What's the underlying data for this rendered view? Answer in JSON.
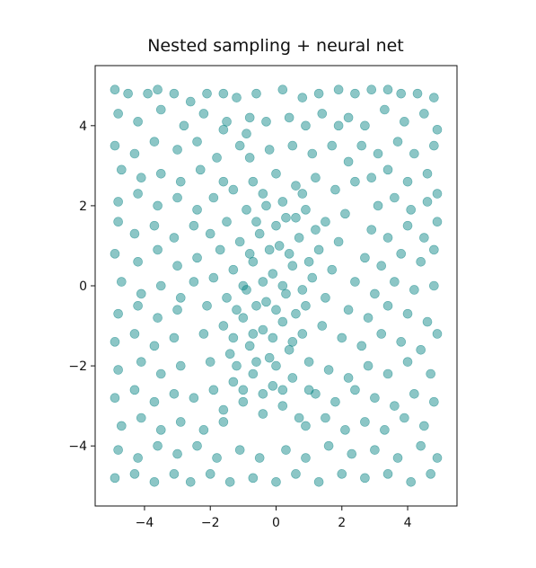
{
  "chart_data": {
    "type": "scatter",
    "title": "Nested sampling + neural net",
    "xlabel": "",
    "ylabel": "",
    "xlim": [
      -5.5,
      5.5
    ],
    "ylim": [
      -5.5,
      5.5
    ],
    "x_ticks": [
      -4,
      -2,
      0,
      2,
      4
    ],
    "y_ticks": [
      -4,
      -2,
      0,
      2,
      4
    ],
    "x_tick_labels": [
      "−4",
      "−2",
      "0",
      "2",
      "4"
    ],
    "y_tick_labels": [
      "−4",
      "−2",
      "0",
      "2",
      "4"
    ],
    "grid": false,
    "legend": "none",
    "marker_color": "#008080",
    "marker_alpha": 0.45,
    "series": [
      {
        "points": [
          [
            -4.9,
            4.9
          ],
          [
            -4.5,
            4.8
          ],
          [
            -3.9,
            4.8
          ],
          [
            -3.6,
            4.9
          ],
          [
            -3.1,
            4.8
          ],
          [
            -2.6,
            4.6
          ],
          [
            -2.1,
            4.8
          ],
          [
            -1.6,
            4.8
          ],
          [
            -1.2,
            4.7
          ],
          [
            -0.6,
            4.8
          ],
          [
            0.2,
            4.9
          ],
          [
            0.8,
            4.7
          ],
          [
            1.3,
            4.8
          ],
          [
            1.9,
            4.9
          ],
          [
            2.4,
            4.8
          ],
          [
            2.9,
            4.9
          ],
          [
            3.4,
            4.9
          ],
          [
            3.8,
            4.8
          ],
          [
            4.3,
            4.8
          ],
          [
            4.8,
            4.7
          ],
          [
            -4.8,
            4.3
          ],
          [
            -4.2,
            4.1
          ],
          [
            -3.5,
            4.4
          ],
          [
            -2.8,
            4.0
          ],
          [
            -2.2,
            4.3
          ],
          [
            -1.5,
            4.1
          ],
          [
            -0.8,
            4.2
          ],
          [
            2.2,
            4.2
          ],
          [
            2.7,
            4.0
          ],
          [
            3.3,
            4.4
          ],
          [
            3.9,
            4.1
          ],
          [
            4.5,
            4.3
          ],
          [
            4.9,
            3.9
          ],
          [
            -4.9,
            3.5
          ],
          [
            -4.3,
            3.3
          ],
          [
            -3.7,
            3.6
          ],
          [
            -3.0,
            3.4
          ],
          [
            -2.4,
            3.6
          ],
          [
            -1.8,
            3.2
          ],
          [
            -1.1,
            3.5
          ],
          [
            2.6,
            3.5
          ],
          [
            3.1,
            3.3
          ],
          [
            3.7,
            3.6
          ],
          [
            4.2,
            3.3
          ],
          [
            4.8,
            3.5
          ],
          [
            -4.7,
            2.9
          ],
          [
            -4.1,
            2.7
          ],
          [
            -3.5,
            2.8
          ],
          [
            -2.9,
            2.6
          ],
          [
            -2.3,
            2.9
          ],
          [
            -1.6,
            2.6
          ],
          [
            2.9,
            2.7
          ],
          [
            3.4,
            2.9
          ],
          [
            4.0,
            2.6
          ],
          [
            4.6,
            2.8
          ],
          [
            4.9,
            2.3
          ],
          [
            -4.8,
            2.1
          ],
          [
            -4.2,
            2.3
          ],
          [
            -3.6,
            2.0
          ],
          [
            -3.0,
            2.2
          ],
          [
            -2.4,
            1.9
          ],
          [
            -1.9,
            2.2
          ],
          [
            3.1,
            2.0
          ],
          [
            3.6,
            2.2
          ],
          [
            4.1,
            1.9
          ],
          [
            4.6,
            2.1
          ],
          [
            -4.8,
            1.6
          ],
          [
            -4.3,
            1.3
          ],
          [
            -3.7,
            1.5
          ],
          [
            -3.1,
            1.2
          ],
          [
            -2.5,
            1.5
          ],
          [
            -2.0,
            1.3
          ],
          [
            2.9,
            1.4
          ],
          [
            3.4,
            1.2
          ],
          [
            4.0,
            1.5
          ],
          [
            4.5,
            1.2
          ],
          [
            4.9,
            1.6
          ],
          [
            -4.9,
            0.8
          ],
          [
            -4.2,
            0.6
          ],
          [
            -3.6,
            0.9
          ],
          [
            -3.0,
            0.5
          ],
          [
            -2.4,
            0.7
          ],
          [
            2.7,
            0.7
          ],
          [
            3.2,
            0.5
          ],
          [
            3.8,
            0.8
          ],
          [
            4.4,
            0.6
          ],
          [
            4.8,
            0.9
          ],
          [
            -4.7,
            0.1
          ],
          [
            -4.1,
            -0.2
          ],
          [
            -3.5,
            0.0
          ],
          [
            -2.9,
            -0.3
          ],
          [
            -2.5,
            0.1
          ],
          [
            2.4,
            0.1
          ],
          [
            3.0,
            -0.2
          ],
          [
            3.6,
            0.1
          ],
          [
            4.2,
            -0.1
          ],
          [
            4.8,
            0.0
          ],
          [
            -4.8,
            -0.7
          ],
          [
            -4.2,
            -0.5
          ],
          [
            -3.6,
            -0.8
          ],
          [
            -3.0,
            -0.6
          ],
          [
            2.2,
            -0.6
          ],
          [
            2.8,
            -0.8
          ],
          [
            3.4,
            -0.5
          ],
          [
            4.0,
            -0.7
          ],
          [
            4.6,
            -0.9
          ],
          [
            -4.9,
            -1.4
          ],
          [
            -4.3,
            -1.2
          ],
          [
            -3.7,
            -1.5
          ],
          [
            -3.1,
            -1.3
          ],
          [
            2.0,
            -1.3
          ],
          [
            2.6,
            -1.5
          ],
          [
            3.2,
            -1.2
          ],
          [
            3.8,
            -1.4
          ],
          [
            4.4,
            -1.6
          ],
          [
            4.9,
            -1.2
          ],
          [
            -4.8,
            -2.1
          ],
          [
            -4.1,
            -1.9
          ],
          [
            -3.5,
            -2.2
          ],
          [
            -2.9,
            -2.0
          ],
          [
            1.6,
            -2.1
          ],
          [
            2.2,
            -2.3
          ],
          [
            2.8,
            -2.0
          ],
          [
            3.4,
            -2.2
          ],
          [
            4.0,
            -1.9
          ],
          [
            4.7,
            -2.2
          ],
          [
            -4.9,
            -2.8
          ],
          [
            -4.3,
            -2.6
          ],
          [
            -3.7,
            -2.9
          ],
          [
            -3.1,
            -2.7
          ],
          [
            -2.5,
            -2.8
          ],
          [
            1.2,
            -2.7
          ],
          [
            1.8,
            -2.9
          ],
          [
            2.4,
            -2.6
          ],
          [
            3.0,
            -2.8
          ],
          [
            3.6,
            -3.0
          ],
          [
            4.2,
            -2.7
          ],
          [
            4.8,
            -2.9
          ],
          [
            -4.7,
            -3.5
          ],
          [
            -4.1,
            -3.3
          ],
          [
            -3.5,
            -3.6
          ],
          [
            -2.9,
            -3.4
          ],
          [
            -2.2,
            -3.6
          ],
          [
            -1.6,
            -3.4
          ],
          [
            0.9,
            -3.5
          ],
          [
            1.5,
            -3.3
          ],
          [
            2.1,
            -3.6
          ],
          [
            2.7,
            -3.4
          ],
          [
            3.3,
            -3.6
          ],
          [
            3.9,
            -3.3
          ],
          [
            4.5,
            -3.5
          ],
          [
            -4.8,
            -4.1
          ],
          [
            -4.2,
            -4.3
          ],
          [
            -3.6,
            -4.0
          ],
          [
            -3.0,
            -4.2
          ],
          [
            -2.4,
            -4.0
          ],
          [
            -1.8,
            -4.3
          ],
          [
            -1.1,
            -4.1
          ],
          [
            -0.5,
            -4.3
          ],
          [
            0.3,
            -4.1
          ],
          [
            0.9,
            -4.3
          ],
          [
            1.6,
            -4.0
          ],
          [
            2.3,
            -4.2
          ],
          [
            3.0,
            -4.1
          ],
          [
            3.7,
            -4.3
          ],
          [
            4.4,
            -4.0
          ],
          [
            4.9,
            -4.3
          ],
          [
            -4.9,
            -4.8
          ],
          [
            -4.3,
            -4.7
          ],
          [
            -3.7,
            -4.9
          ],
          [
            -3.1,
            -4.7
          ],
          [
            -2.6,
            -4.9
          ],
          [
            -2.0,
            -4.7
          ],
          [
            -1.4,
            -4.9
          ],
          [
            -0.7,
            -4.8
          ],
          [
            0.0,
            -4.9
          ],
          [
            0.6,
            -4.7
          ],
          [
            1.3,
            -4.9
          ],
          [
            2.0,
            -4.7
          ],
          [
            2.7,
            -4.8
          ],
          [
            3.4,
            -4.7
          ],
          [
            4.1,
            -4.9
          ],
          [
            4.7,
            -4.7
          ],
          [
            -1.6,
            3.9
          ],
          [
            -0.9,
            3.8
          ],
          [
            -0.3,
            4.1
          ],
          [
            0.4,
            4.2
          ],
          [
            0.9,
            4.0
          ],
          [
            1.4,
            4.3
          ],
          [
            1.9,
            4.0
          ],
          [
            -0.8,
            3.2
          ],
          [
            -0.2,
            3.4
          ],
          [
            0.5,
            3.5
          ],
          [
            1.1,
            3.3
          ],
          [
            1.7,
            3.5
          ],
          [
            2.2,
            3.1
          ],
          [
            -1.3,
            2.4
          ],
          [
            -0.7,
            2.6
          ],
          [
            0.0,
            2.8
          ],
          [
            0.6,
            2.5
          ],
          [
            1.2,
            2.7
          ],
          [
            1.8,
            2.4
          ],
          [
            2.4,
            2.6
          ],
          [
            -1.5,
            1.6
          ],
          [
            -0.9,
            1.9
          ],
          [
            -0.3,
            2.0
          ],
          [
            0.3,
            1.7
          ],
          [
            0.9,
            1.9
          ],
          [
            1.5,
            1.6
          ],
          [
            2.1,
            1.8
          ],
          [
            -1.7,
            0.9
          ],
          [
            -1.1,
            1.1
          ],
          [
            -0.5,
            1.3
          ],
          [
            0.1,
            1.0
          ],
          [
            0.7,
            1.2
          ],
          [
            1.3,
            0.9
          ],
          [
            1.9,
            1.1
          ],
          [
            -1.9,
            0.2
          ],
          [
            -1.3,
            0.4
          ],
          [
            -0.7,
            0.6
          ],
          [
            -0.1,
            0.3
          ],
          [
            0.5,
            0.5
          ],
          [
            1.1,
            0.2
          ],
          [
            1.7,
            0.4
          ],
          [
            -2.1,
            -0.5
          ],
          [
            -1.5,
            -0.3
          ],
          [
            -0.9,
            -0.1
          ],
          [
            -0.3,
            -0.4
          ],
          [
            0.3,
            -0.2
          ],
          [
            0.9,
            -0.5
          ],
          [
            1.5,
            -0.3
          ],
          [
            -2.2,
            -1.2
          ],
          [
            -1.6,
            -1.0
          ],
          [
            -1.0,
            -0.8
          ],
          [
            -0.4,
            -1.1
          ],
          [
            0.2,
            -0.9
          ],
          [
            0.8,
            -1.2
          ],
          [
            1.4,
            -1.0
          ],
          [
            -2.0,
            -1.9
          ],
          [
            -1.4,
            -1.7
          ],
          [
            -0.8,
            -1.5
          ],
          [
            -0.2,
            -1.8
          ],
          [
            0.4,
            -1.6
          ],
          [
            1.0,
            -1.9
          ],
          [
            -1.9,
            -2.6
          ],
          [
            -1.3,
            -2.4
          ],
          [
            -0.7,
            -2.2
          ],
          [
            -0.1,
            -2.5
          ],
          [
            0.5,
            -2.3
          ],
          [
            1.0,
            -2.6
          ],
          [
            -1.6,
            -3.1
          ],
          [
            -1.0,
            -2.9
          ],
          [
            -0.4,
            -3.2
          ],
          [
            0.2,
            -3.0
          ],
          [
            0.7,
            -3.3
          ],
          [
            -0.4,
            2.3
          ],
          [
            0.2,
            2.1
          ],
          [
            0.8,
            2.3
          ],
          [
            -0.6,
            1.6
          ],
          [
            0.0,
            1.5
          ],
          [
            0.6,
            1.7
          ],
          [
            1.2,
            1.4
          ],
          [
            -0.8,
            0.8
          ],
          [
            -0.2,
            0.9
          ],
          [
            0.4,
            0.8
          ],
          [
            1.0,
            0.6
          ],
          [
            -1.0,
            0.0
          ],
          [
            -0.4,
            0.1
          ],
          [
            0.2,
            0.0
          ],
          [
            0.8,
            -0.1
          ],
          [
            -1.2,
            -0.6
          ],
          [
            -0.6,
            -0.5
          ],
          [
            0.0,
            -0.6
          ],
          [
            0.6,
            -0.7
          ],
          [
            -1.3,
            -1.3
          ],
          [
            -0.7,
            -1.2
          ],
          [
            -0.1,
            -1.3
          ],
          [
            0.5,
            -1.4
          ],
          [
            -1.2,
            -2.0
          ],
          [
            -0.6,
            -1.9
          ],
          [
            0.0,
            -2.0
          ],
          [
            -1.0,
            -2.6
          ],
          [
            -0.4,
            -2.7
          ],
          [
            0.2,
            -2.6
          ]
        ]
      }
    ]
  }
}
